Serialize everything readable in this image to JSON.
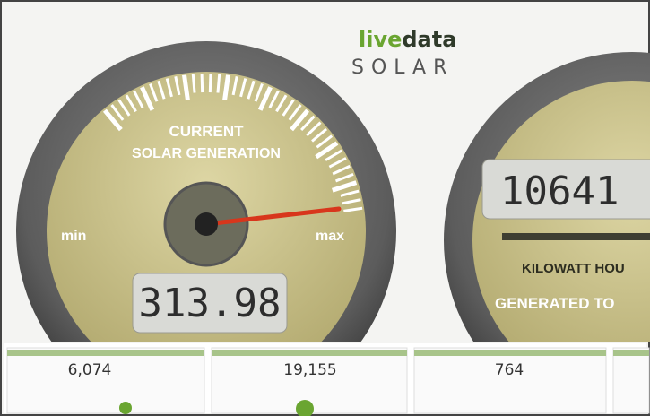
{
  "logo": {
    "live": "live",
    "data": "data",
    "product": "SOLAR"
  },
  "gauges": [
    {
      "title_line1": "CURRENT",
      "title_line2": "SOLAR GENERATION",
      "min": "min",
      "max": "max",
      "reading": "313.98"
    },
    {
      "reading": "10641",
      "label_line1": "KILOWATT HOU",
      "label_line2": "GENERATED TO"
    }
  ],
  "tiles": [
    {
      "value": "6,074"
    },
    {
      "value": "19,155"
    },
    {
      "value": "764"
    }
  ]
}
